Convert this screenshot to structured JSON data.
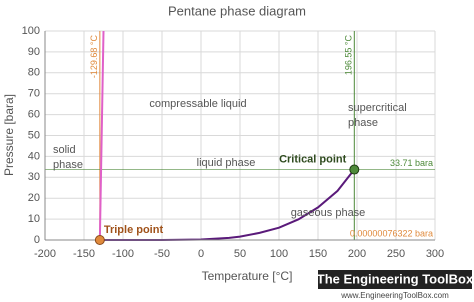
{
  "chart_data": {
    "type": "line",
    "title": "Pentane phase diagram",
    "x_label": "Temperature [°C]",
    "y_label": "Pressure [bara]",
    "xlim": [
      -200,
      300
    ],
    "xticks": [
      -200,
      -150,
      -100,
      -50,
      0,
      50,
      100,
      150,
      200,
      250,
      300
    ],
    "ylim": [
      0,
      100
    ],
    "yticks": [
      0,
      10,
      20,
      30,
      40,
      50,
      60,
      70,
      80,
      90,
      100
    ],
    "grid": true,
    "series": [
      {
        "color": "#e060c8",
        "x": [
          -129.68,
          -125
        ],
        "values": [
          7.6322e-07,
          100
        ]
      },
      {
        "color": "#5a1a7a",
        "x": [
          -129.68,
          -100,
          -50,
          0,
          36.1,
          50,
          75,
          100,
          125,
          150,
          175,
          196.55
        ],
        "values": [
          7.6322e-07,
          0.0004,
          0.017,
          0.24,
          1.0,
          1.6,
          3.4,
          5.9,
          9.9,
          15.6,
          23.5,
          33.71
        ]
      }
    ],
    "triple_point": {
      "label": "Triple point",
      "x": -129.68,
      "y": 7.6322e-07,
      "x_label": "-129.68 °C",
      "y_label": "0.00000076322 bara",
      "color": "#e08a3c"
    },
    "critical_point": {
      "label": "Critical point",
      "x": 196.55,
      "y": 33.71,
      "x_label": "196.55 °C",
      "y_label": "33.71 bara",
      "color": "#4e8a3a"
    },
    "regions": [
      [
        "solid",
        "phase"
      ],
      [
        "compressable liquid"
      ],
      [
        "supercritical",
        "phase"
      ],
      [
        "liquid phase"
      ],
      [
        "gaseous phase"
      ]
    ],
    "logo": {
      "name": "The Engineering ToolBox",
      "url": "www.EngineeringToolBox.com"
    }
  }
}
